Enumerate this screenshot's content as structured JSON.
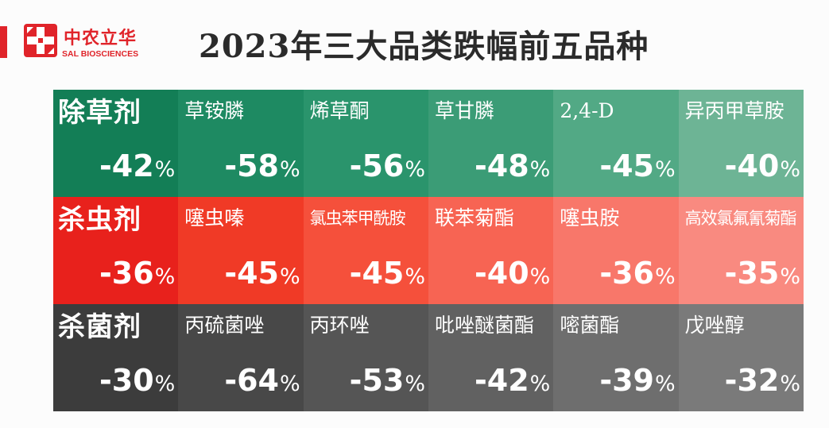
{
  "logo": {
    "cn": "中农立华",
    "en": "SAL BIOSCIENCES",
    "mark": "sal-cross-logo",
    "color": "#e0242a"
  },
  "title": "2023年三大品类跌幅前五品种",
  "chart_data": {
    "type": "table",
    "title": "2023年三大品类跌幅前五品种",
    "unit": "%",
    "rows": [
      {
        "category": "除草剂",
        "category_value": -42,
        "colors": [
          "#137e56",
          "#1e8a62",
          "#2a946c",
          "#3b9c76",
          "#52a985",
          "#6db495"
        ],
        "items": [
          {
            "name": "草铵膦",
            "value": -58
          },
          {
            "name": "烯草酮",
            "value": -56
          },
          {
            "name": "草甘膦",
            "value": -48
          },
          {
            "name": "2,4-D",
            "value": -45
          },
          {
            "name": "异丙甲草胺",
            "value": -40
          }
        ]
      },
      {
        "category": "杀虫剂",
        "category_value": -36,
        "colors": [
          "#e8211c",
          "#f03a26",
          "#f5503b",
          "#f76453",
          "#f8776a",
          "#f98a80"
        ],
        "items": [
          {
            "name": "噻虫嗪",
            "value": -45
          },
          {
            "name": "氯虫苯甲酰胺",
            "value": -45
          },
          {
            "name": "联苯菊酯",
            "value": -40
          },
          {
            "name": "噻虫胺",
            "value": -36
          },
          {
            "name": "高效氯氟氰菊酯",
            "value": -35
          }
        ]
      },
      {
        "category": "杀菌剂",
        "category_value": -30,
        "colors": [
          "#3c3c3c",
          "#484848",
          "#555555",
          "#616161",
          "#6e6e6e",
          "#7a7a7a"
        ],
        "items": [
          {
            "name": "丙硫菌唑",
            "value": -64
          },
          {
            "name": "丙环唑",
            "value": -53
          },
          {
            "name": "吡唑醚菌酯",
            "value": -42
          },
          {
            "name": "嘧菌酯",
            "value": -39
          },
          {
            "name": "戊唑醇",
            "value": -32
          }
        ]
      }
    ]
  }
}
